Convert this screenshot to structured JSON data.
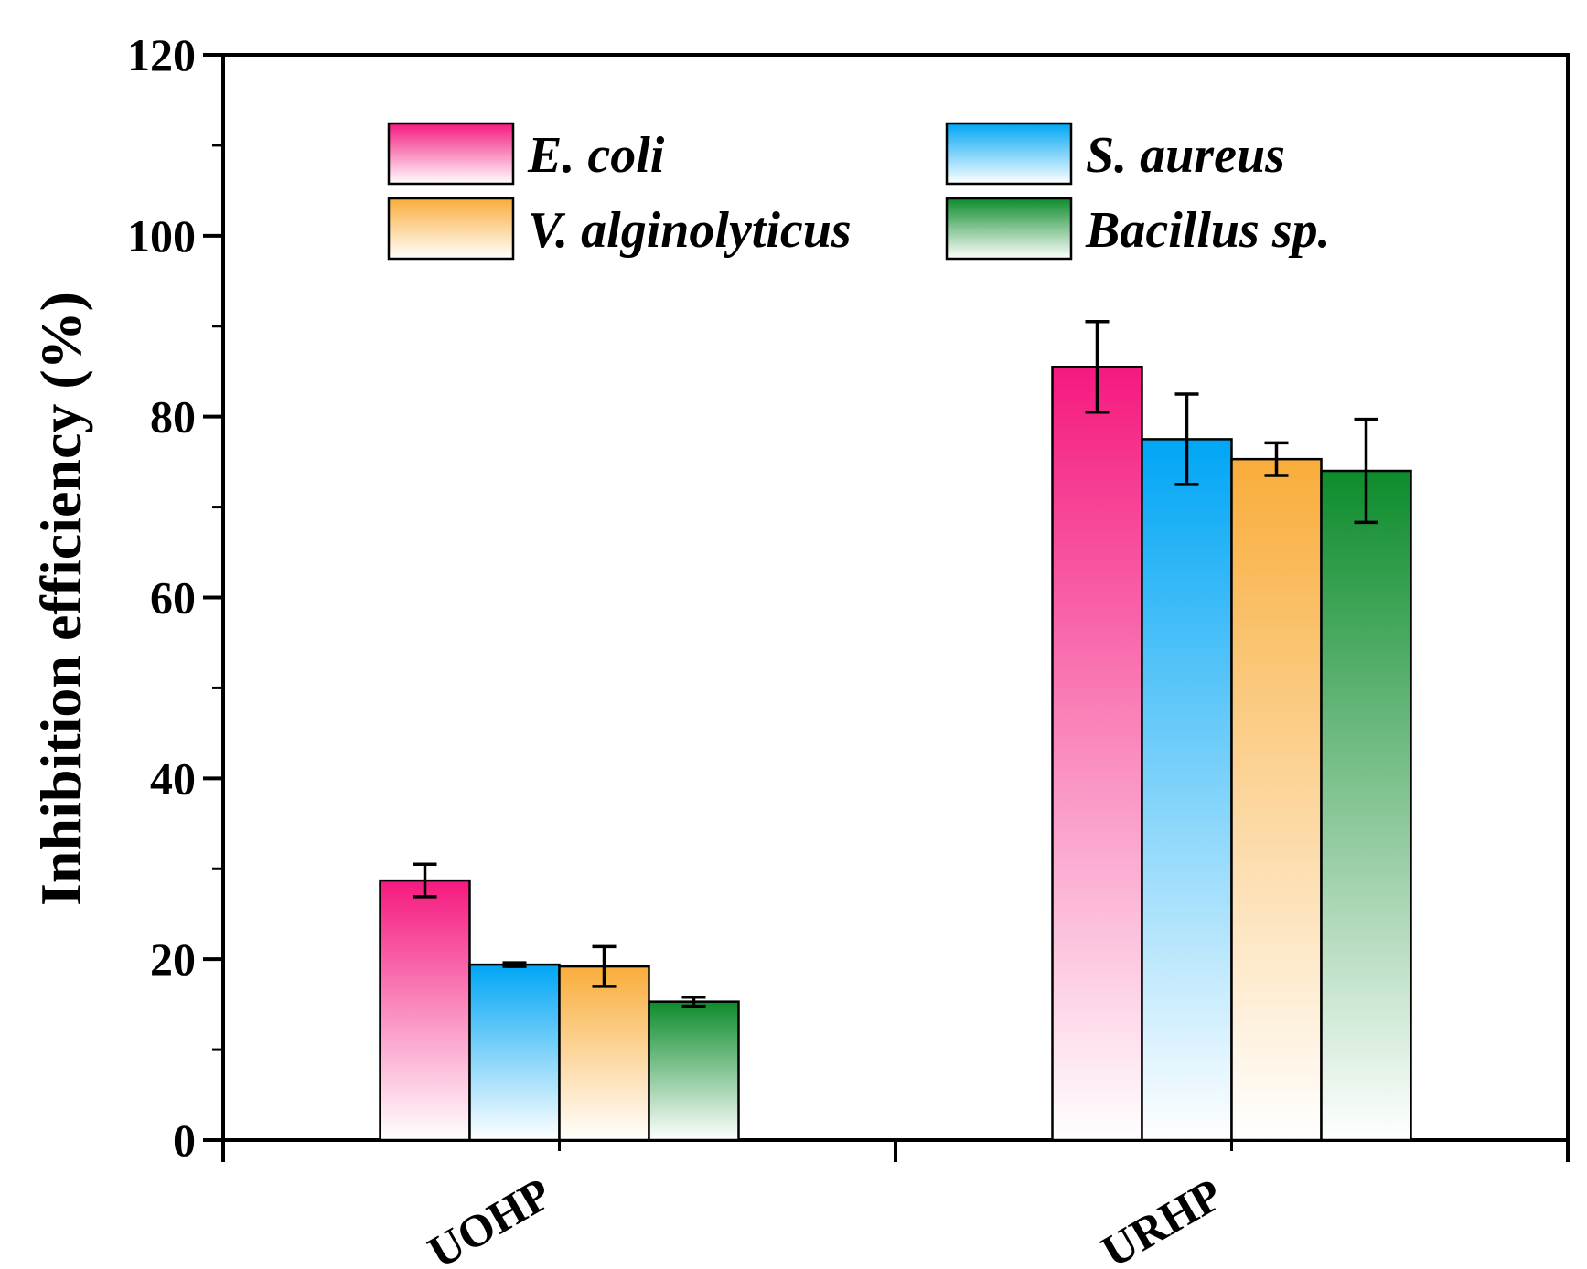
{
  "chart_data": {
    "type": "bar",
    "title": "",
    "xlabel": "",
    "ylabel": "Inhibition efficiency (%)",
    "ylim": [
      0,
      120
    ],
    "yticks": [
      "0",
      "20",
      "40",
      "60",
      "80",
      "100",
      "120"
    ],
    "categories": [
      "UOHP",
      "URHP"
    ],
    "legend_position": "top",
    "series": [
      {
        "name": "E. coli",
        "values": [
          28.7,
          85.5
        ],
        "errors": [
          1.8,
          5.0
        ],
        "color": "#f5197f"
      },
      {
        "name": "S. aureus",
        "values": [
          19.4,
          77.5
        ],
        "errors": [
          0.2,
          5.0
        ],
        "color": "#00a6f5"
      },
      {
        "name": "V. alginolyticus",
        "values": [
          19.2,
          75.3
        ],
        "errors": [
          2.2,
          1.8
        ],
        "color": "#f9ad3b"
      },
      {
        "name": "Bacillus sp.",
        "values": [
          15.3,
          74.0
        ],
        "errors": [
          0.5,
          5.7
        ],
        "color": "#0d8c2c"
      }
    ]
  }
}
